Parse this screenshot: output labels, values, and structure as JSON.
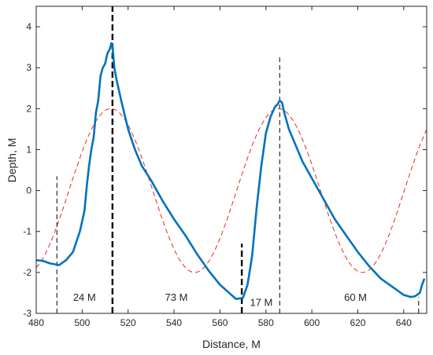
{
  "chart_data": {
    "type": "line",
    "title": "",
    "xlabel": "Distance, M",
    "ylabel": "Depth, M",
    "xlim": [
      480,
      650
    ],
    "ylim": [
      -3,
      4.5
    ],
    "xticks": [
      480,
      500,
      520,
      540,
      560,
      580,
      600,
      620,
      640
    ],
    "yticks": [
      -3,
      -2,
      -1,
      0,
      1,
      2,
      3,
      4
    ],
    "grid": false,
    "legend": "none",
    "colors": {
      "measured": "#0072BD",
      "fit": "#E8291C",
      "marker": "#000000"
    },
    "series": [
      {
        "name": "",
        "style": "solid",
        "x": [
          480,
          483,
          486,
          490,
          493,
          496,
          499,
          501,
          502,
          503,
          504,
          505,
          506,
          507,
          508,
          509,
          510,
          511,
          512,
          512.7,
          513.2,
          514,
          515,
          517,
          520,
          523,
          526,
          530,
          535,
          540,
          545,
          550,
          555,
          560,
          564,
          567,
          570,
          572,
          574,
          576,
          578,
          580,
          582,
          584,
          585,
          586,
          587,
          588,
          590,
          593,
          596,
          600,
          605,
          610,
          615,
          620,
          625,
          630,
          635,
          640,
          643,
          645,
          647,
          648,
          649
        ],
        "y": [
          -1.7,
          -1.72,
          -1.78,
          -1.82,
          -1.7,
          -1.5,
          -1.0,
          -0.5,
          0.1,
          0.6,
          1.0,
          1.3,
          1.9,
          2.2,
          2.8,
          3.0,
          3.1,
          3.35,
          3.45,
          3.6,
          3.55,
          3.0,
          2.7,
          2.2,
          1.5,
          1.0,
          0.6,
          0.25,
          -0.25,
          -0.7,
          -1.1,
          -1.55,
          -1.95,
          -2.3,
          -2.5,
          -2.65,
          -2.62,
          -2.3,
          -1.6,
          -0.4,
          0.6,
          1.4,
          1.8,
          2.05,
          2.1,
          2.2,
          2.15,
          1.9,
          1.5,
          1.1,
          0.7,
          0.3,
          -0.2,
          -0.7,
          -1.1,
          -1.5,
          -1.85,
          -2.15,
          -2.35,
          -2.55,
          -2.6,
          -2.58,
          -2.5,
          -2.3,
          -2.15
        ]
      },
      {
        "name": "",
        "style": "dashed",
        "function": "sine",
        "amplitude": 2.0,
        "period_m": 73,
        "peak_x": [
          512.5,
          585.5
        ],
        "trough_x": [
          549,
          622
        ]
      }
    ],
    "markers": [
      {
        "x": 489,
        "y0": -3,
        "y1": 0.35,
        "style": "thin-dashed"
      },
      {
        "x": 513.2,
        "y0": -3,
        "y1": 4.5,
        "style": "thick-dashed"
      },
      {
        "x": 569.5,
        "y0": -3,
        "y1": -1.3,
        "style": "thick-dashed"
      },
      {
        "x": 586,
        "y0": -3,
        "y1": 3.25,
        "style": "thin-dashed"
      },
      {
        "x": 646.5,
        "y0": -3,
        "y1": -2.6,
        "style": "thin-dashed"
      }
    ],
    "annotations": [
      {
        "text": "24 M",
        "x": 501,
        "y": -2.62
      },
      {
        "text": "73 M",
        "x": 541,
        "y": -2.62
      },
      {
        "text": "17 M",
        "x": 578,
        "y": -2.74
      },
      {
        "text": "60 M",
        "x": 619,
        "y": -2.62
      }
    ]
  }
}
